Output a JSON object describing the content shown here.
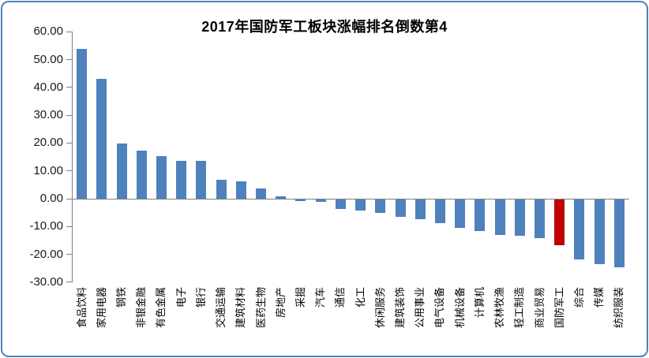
{
  "chart_data": {
    "type": "bar",
    "title": "2017年国防军工板块涨幅排名倒数第4",
    "categories": [
      "食品饮料",
      "家用电器",
      "钢铁",
      "非银金融",
      "有色金属",
      "电子",
      "银行",
      "交通运输",
      "建筑材料",
      "医药生物",
      "房地产",
      "采掘",
      "汽车",
      "通信",
      "化工",
      "休闲服务",
      "建筑装饰",
      "公用事业",
      "电气设备",
      "机械设备",
      "计算机",
      "农林牧渔",
      "轻工制造",
      "商业贸易",
      "国防军工",
      "综合",
      "传媒",
      "纺织服装"
    ],
    "values": [
      53.8,
      43.1,
      19.9,
      17.4,
      15.4,
      13.6,
      13.5,
      6.7,
      6.1,
      3.6,
      0.9,
      -0.6,
      -0.9,
      -3.3,
      -4.0,
      -4.9,
      -6.3,
      -7.2,
      -8.6,
      -10.3,
      -11.3,
      -12.8,
      -12.9,
      -13.8,
      -16.5,
      -21.5,
      -23.2,
      -24.3
    ],
    "highlight_category": "国防军工",
    "bar_color": "#4f81bd",
    "highlight_color": "#c00000",
    "axis_color": "#808080",
    "ylim": [
      -30,
      60
    ],
    "ytick_step": 10,
    "ytick_labels": [
      "60.00",
      "50.00",
      "40.00",
      "30.00",
      "20.00",
      "10.00",
      "0.00",
      "-10.00",
      "-20.00",
      "-30.00"
    ],
    "xlabel": "",
    "ylabel": "",
    "grid": false,
    "legend": false
  },
  "frame": {
    "border_color": "#4f81bd",
    "background": "#ffffff"
  }
}
